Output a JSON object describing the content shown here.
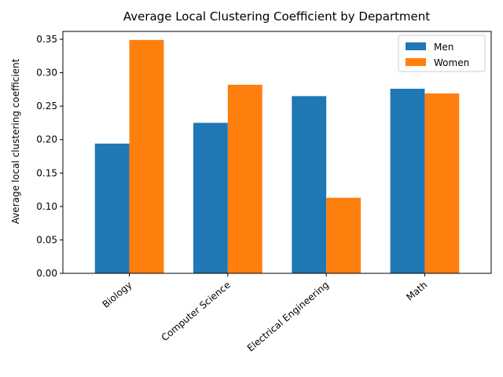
{
  "chart_data": {
    "type": "bar",
    "title": "Average Local Clustering Coefficient by Department",
    "xlabel": "",
    "ylabel": "Average local clustering coefficient",
    "categories": [
      "Biology",
      "Computer Science",
      "Electrical Engineering",
      "Math"
    ],
    "series": [
      {
        "name": "Men",
        "color": "#1f77b4",
        "values": [
          0.194,
          0.225,
          0.265,
          0.276
        ]
      },
      {
        "name": "Women",
        "color": "#ff7f0e",
        "values": [
          0.349,
          0.282,
          0.113,
          0.269
        ]
      }
    ],
    "ylim": [
      0,
      0.35
    ],
    "yticks": [
      "0.00",
      "0.05",
      "0.10",
      "0.15",
      "0.20",
      "0.25",
      "0.30",
      "0.35"
    ],
    "legend_position": "top-right",
    "grid": false
  }
}
